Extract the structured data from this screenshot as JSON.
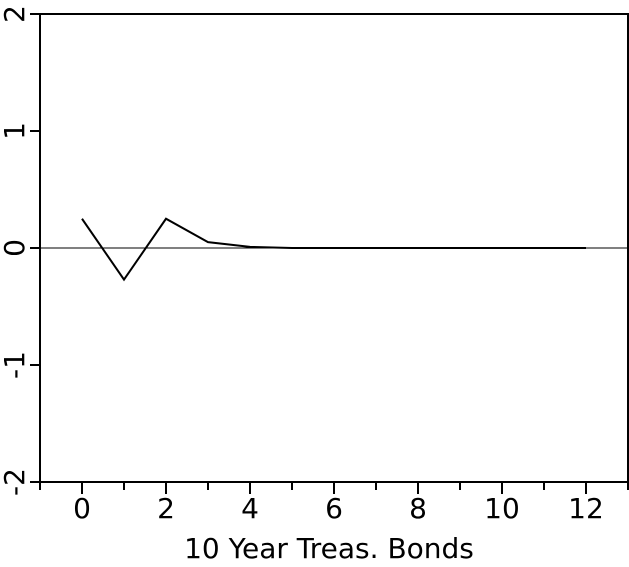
{
  "chart_data": {
    "type": "line",
    "x_label": "10 Year Treas. Bonds",
    "x": [
      0,
      1,
      2,
      3,
      4,
      5,
      6,
      7,
      8,
      9,
      10,
      11,
      12
    ],
    "series": [
      {
        "name": "10 Year Treas. Bonds",
        "color": "#000000",
        "values": [
          0.25,
          -0.27,
          0.25,
          0.05,
          0.01,
          0,
          0,
          0,
          0,
          0,
          0,
          0,
          0
        ]
      }
    ],
    "xlim": [
      -1,
      13
    ],
    "xticks": [
      0,
      2,
      4,
      6,
      8,
      10,
      12
    ],
    "xminor_ticks": [
      -1,
      1,
      3,
      5,
      7,
      9,
      11,
      13
    ],
    "ylim": [
      -2,
      2
    ],
    "yticks": [
      -2,
      -1,
      0,
      1,
      2
    ],
    "reference_line": 0
  }
}
